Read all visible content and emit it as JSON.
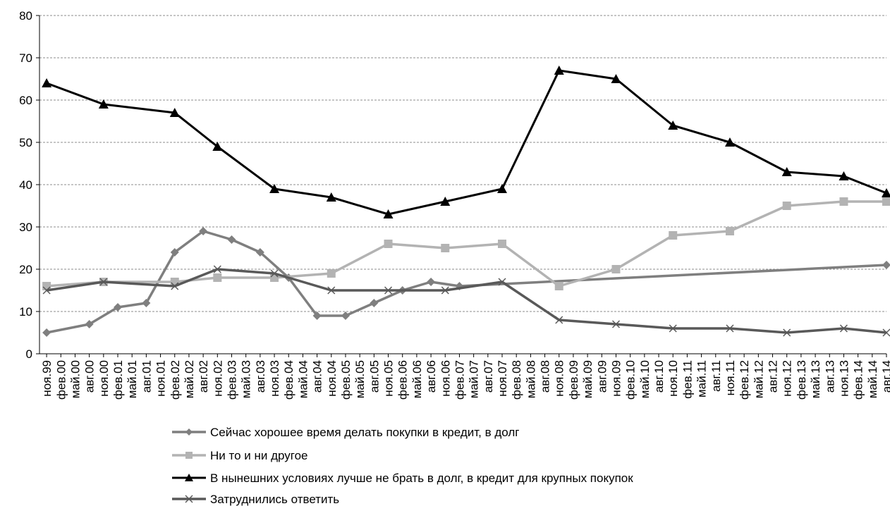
{
  "chart_data": {
    "type": "line",
    "grid": true,
    "legend_position": "bottom",
    "ylim": [
      0,
      80
    ],
    "yticks": [
      0,
      10,
      20,
      30,
      40,
      50,
      60,
      70,
      80
    ],
    "categories": [
      "ноя.99",
      "фев.00",
      "май.00",
      "авг.00",
      "ноя.00",
      "фев.01",
      "май.01",
      "авг.01",
      "ноя.01",
      "фев.02",
      "май.02",
      "авг.02",
      "ноя.02",
      "фев.03",
      "май.03",
      "авг.03",
      "ноя.03",
      "фев.04",
      "май.04",
      "авг.04",
      "ноя.04",
      "фев.05",
      "май.05",
      "авг.05",
      "ноя.05",
      "фев.06",
      "май.06",
      "авг.06",
      "ноя.06",
      "фев.07",
      "май.07",
      "авг.07",
      "ноя.07",
      "фев.08",
      "май.08",
      "авг.08",
      "ноя.08",
      "фев.09",
      "май.09",
      "авг.09",
      "ноя.09",
      "фев.10",
      "май.10",
      "авг.10",
      "ноя.10",
      "фев.11",
      "май.11",
      "авг.11",
      "ноя.11",
      "фев.12",
      "май.12",
      "авг.12",
      "ноя.12",
      "фев.13",
      "май.13",
      "авг.13",
      "ноя.13",
      "фев.14",
      "май.14",
      "авг.14"
    ],
    "series": [
      {
        "name": "Сейчас хорошее время делать покупки в кредит, в долг",
        "color": "#7f7f7f",
        "marker": "diamond",
        "points": [
          {
            "x": "ноя.99",
            "y": 5
          },
          {
            "x": "авг.00",
            "y": 7
          },
          {
            "x": "фев.01",
            "y": 11
          },
          {
            "x": "авг.01",
            "y": 12
          },
          {
            "x": "фев.02",
            "y": 24
          },
          {
            "x": "авг.02",
            "y": 29
          },
          {
            "x": "фев.03",
            "y": 27
          },
          {
            "x": "авг.03",
            "y": 24
          },
          {
            "x": "фев.04",
            "y": 18
          },
          {
            "x": "авг.04",
            "y": 9
          },
          {
            "x": "фев.05",
            "y": 9
          },
          {
            "x": "авг.05",
            "y": 12
          },
          {
            "x": "фев.06",
            "y": 15
          },
          {
            "x": "авг.06",
            "y": 17
          },
          {
            "x": "фев.07",
            "y": 16
          },
          {
            "x": "авг.14",
            "y": 21
          }
        ]
      },
      {
        "name": "Ни то и ни другое",
        "color": "#b3b3b3",
        "marker": "square",
        "points": [
          {
            "x": "ноя.99",
            "y": 16
          },
          {
            "x": "ноя.00",
            "y": 17
          },
          {
            "x": "фев.02",
            "y": 17
          },
          {
            "x": "ноя.02",
            "y": 18
          },
          {
            "x": "ноя.03",
            "y": 18
          },
          {
            "x": "ноя.04",
            "y": 19
          },
          {
            "x": "ноя.05",
            "y": 26
          },
          {
            "x": "ноя.06",
            "y": 25
          },
          {
            "x": "ноя.07",
            "y": 26
          },
          {
            "x": "ноя.08",
            "y": 16
          },
          {
            "x": "ноя.09",
            "y": 20
          },
          {
            "x": "ноя.10",
            "y": 28
          },
          {
            "x": "ноя.11",
            "y": 29
          },
          {
            "x": "ноя.12",
            "y": 35
          },
          {
            "x": "ноя.13",
            "y": 36
          },
          {
            "x": "авг.14",
            "y": 36
          }
        ]
      },
      {
        "name": "В нынешних условиях лучше не брать в долг, в кредит для крупных покупок",
        "color": "#000000",
        "marker": "triangle",
        "points": [
          {
            "x": "ноя.99",
            "y": 64
          },
          {
            "x": "ноя.00",
            "y": 59
          },
          {
            "x": "фев.02",
            "y": 57
          },
          {
            "x": "ноя.02",
            "y": 49
          },
          {
            "x": "ноя.03",
            "y": 39
          },
          {
            "x": "ноя.04",
            "y": 37
          },
          {
            "x": "ноя.05",
            "y": 33
          },
          {
            "x": "ноя.06",
            "y": 36
          },
          {
            "x": "ноя.07",
            "y": 39
          },
          {
            "x": "ноя.08",
            "y": 67
          },
          {
            "x": "ноя.09",
            "y": 65
          },
          {
            "x": "ноя.10",
            "y": 54
          },
          {
            "x": "ноя.11",
            "y": 50
          },
          {
            "x": "ноя.12",
            "y": 43
          },
          {
            "x": "ноя.13",
            "y": 42
          },
          {
            "x": "авг.14",
            "y": 38
          }
        ]
      },
      {
        "name": "Затруднились ответить",
        "color": "#595959",
        "marker": "x",
        "points": [
          {
            "x": "ноя.99",
            "y": 15
          },
          {
            "x": "ноя.00",
            "y": 17
          },
          {
            "x": "фев.02",
            "y": 16
          },
          {
            "x": "ноя.02",
            "y": 20
          },
          {
            "x": "ноя.03",
            "y": 19
          },
          {
            "x": "ноя.04",
            "y": 15
          },
          {
            "x": "ноя.05",
            "y": 15
          },
          {
            "x": "ноя.06",
            "y": 15
          },
          {
            "x": "ноя.07",
            "y": 17
          },
          {
            "x": "ноя.08",
            "y": 8
          },
          {
            "x": "ноя.09",
            "y": 7
          },
          {
            "x": "ноя.10",
            "y": 6
          },
          {
            "x": "ноя.11",
            "y": 6
          },
          {
            "x": "ноя.12",
            "y": 5
          },
          {
            "x": "ноя.13",
            "y": 6
          },
          {
            "x": "авг.14",
            "y": 5
          }
        ]
      }
    ]
  }
}
